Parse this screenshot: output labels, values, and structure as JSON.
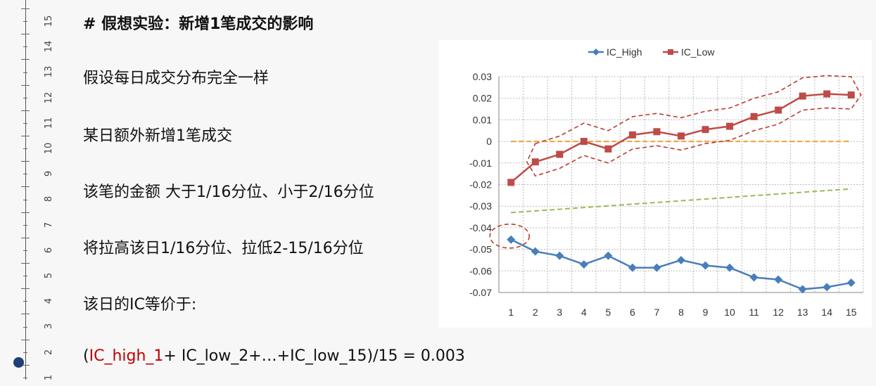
{
  "ruler": {
    "numbers": [
      "15",
      "14",
      "13",
      "12",
      "11",
      "10",
      "9",
      "8",
      "7",
      "6",
      "5",
      "4",
      "3",
      "2",
      "1"
    ]
  },
  "slide": {
    "title": "# 假想实验：新增1笔成交的影响",
    "lines": [
      "假设每日成交分布完全一样",
      "某日额外新增1笔成交",
      "该笔的金额 大于1/16分位、小于2/16分位",
      "将拉高该日1/16分位、拉低2-15/16分位",
      "该日的IC等价于:"
    ],
    "formula": {
      "open": "(",
      "highlight": "IC_high_1",
      "rest": "+ IC_low_2+…+IC_low_15)/15 = 0.003"
    }
  },
  "chart_data": {
    "type": "line",
    "categories": [
      "1",
      "2",
      "3",
      "4",
      "5",
      "6",
      "7",
      "8",
      "9",
      "10",
      "11",
      "12",
      "13",
      "14",
      "15"
    ],
    "ylim": [
      -0.07,
      0.03
    ],
    "yticks": [
      "0.03",
      "0.02",
      "0.01",
      "0",
      "-0.01",
      "-0.02",
      "-0.03",
      "-0.04",
      "-0.05",
      "-0.06",
      "-0.07"
    ],
    "grid": true,
    "legend_position": "top",
    "series": [
      {
        "name": "IC_High",
        "color": "#4a7ebb",
        "marker": "diamond",
        "values": [
          -0.0455,
          -0.051,
          -0.053,
          -0.057,
          -0.053,
          -0.0585,
          -0.0585,
          -0.055,
          -0.0575,
          -0.0585,
          -0.063,
          -0.064,
          -0.0685,
          -0.0675,
          -0.0655
        ]
      },
      {
        "name": "IC_Low",
        "color": "#be4b48",
        "marker": "square",
        "values": [
          -0.019,
          -0.0095,
          -0.006,
          0.0,
          -0.0035,
          0.003,
          0.0045,
          0.0025,
          0.0055,
          0.007,
          0.0115,
          0.0145,
          0.021,
          0.022,
          0.0215
        ]
      }
    ],
    "reference_lines": [
      {
        "kind": "zero-line",
        "color": "#f0a030",
        "values": [
          0,
          0
        ]
      },
      {
        "kind": "mean-line",
        "color": "#9bbb59",
        "values": [
          -0.033,
          -0.022
        ]
      }
    ],
    "annotations": [
      {
        "kind": "dashed-ellipse",
        "color": "#c0392b",
        "around": "IC_High point 1"
      },
      {
        "kind": "dashed-loop",
        "color": "#c0392b",
        "around": "IC_Low points 2-15"
      }
    ]
  }
}
